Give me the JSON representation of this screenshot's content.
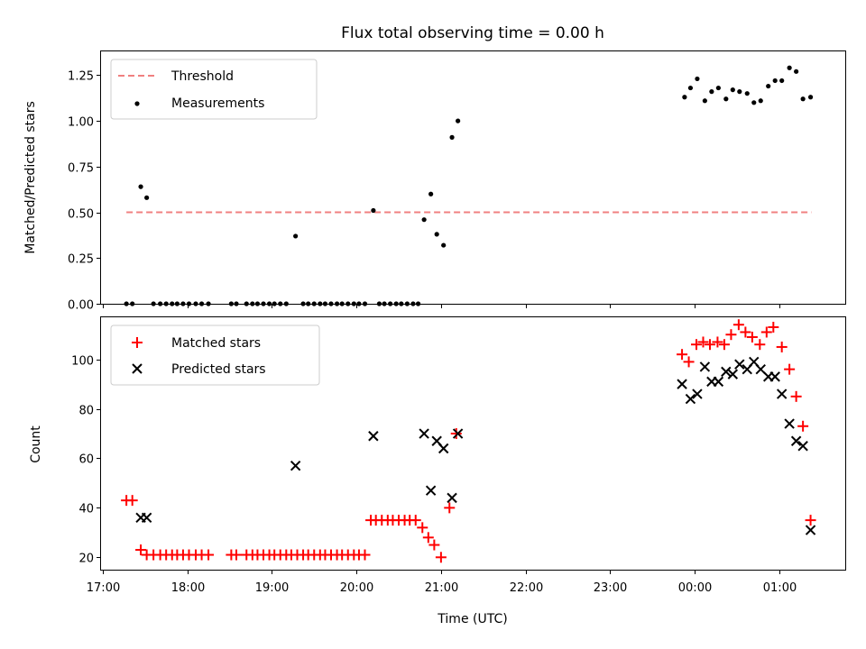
{
  "chart_data": {
    "type": "scatter",
    "title": "Flux total observing time = 0.00 h",
    "xlabel": "Time (UTC)",
    "x_tick_labels": [
      "17:00",
      "18:00",
      "19:00",
      "20:00",
      "21:00",
      "22:00",
      "23:00",
      "00:00",
      "01:00"
    ],
    "x_range_hours": [
      16.98,
      25.78
    ],
    "top_panel": {
      "ylabel": "Matched/Predicted stars",
      "ylim": [
        0,
        1.38
      ],
      "y_ticks": [
        "0.00",
        "0.25",
        "0.50",
        "0.75",
        "1.00",
        "1.25"
      ],
      "y_tick_values": [
        0,
        0.25,
        0.5,
        0.75,
        1.0,
        1.25
      ],
      "legend": {
        "position": "top-left",
        "threshold_label": "Threshold",
        "measurements_label": "Measurements"
      },
      "threshold": {
        "value": 0.5,
        "x_start": 17.28,
        "x_end": 25.38,
        "color": "#f08080"
      },
      "measurements": {
        "color": "#000000",
        "x": [
          17.28,
          17.35,
          17.45,
          17.52,
          17.6,
          17.68,
          17.75,
          17.82,
          17.88,
          17.95,
          18.02,
          18.1,
          18.17,
          18.25,
          18.52,
          18.58,
          18.7,
          18.77,
          18.83,
          18.9,
          18.97,
          19.03,
          19.1,
          19.17,
          19.28,
          19.37,
          19.43,
          19.5,
          19.57,
          19.63,
          19.7,
          19.77,
          19.83,
          19.9,
          19.97,
          20.03,
          20.1,
          20.2,
          20.27,
          20.33,
          20.4,
          20.47,
          20.53,
          20.6,
          20.67,
          20.73,
          20.8,
          20.88,
          20.95,
          21.03,
          21.13,
          21.2,
          23.88,
          23.95,
          24.03,
          24.12,
          24.2,
          24.28,
          24.37,
          24.45,
          24.53,
          24.62,
          24.7,
          24.78,
          24.87,
          24.95,
          25.03,
          25.12,
          25.2,
          25.28,
          25.37
        ],
        "y": [
          0.0,
          0.0,
          0.64,
          0.58,
          0.0,
          0.0,
          0.0,
          0.0,
          0.0,
          0.0,
          0.0,
          0.0,
          0.0,
          0.0,
          0.0,
          0.0,
          0.0,
          0.0,
          0.0,
          0.0,
          0.0,
          0.0,
          0.0,
          0.0,
          0.37,
          0.0,
          0.0,
          0.0,
          0.0,
          0.0,
          0.0,
          0.0,
          0.0,
          0.0,
          0.0,
          0.0,
          0.0,
          0.51,
          0.0,
          0.0,
          0.0,
          0.0,
          0.0,
          0.0,
          0.0,
          0.0,
          0.46,
          0.6,
          0.38,
          0.32,
          0.91,
          1.0,
          1.13,
          1.18,
          1.23,
          1.11,
          1.16,
          1.18,
          1.12,
          1.17,
          1.16,
          1.15,
          1.1,
          1.11,
          1.19,
          1.22,
          1.22,
          1.29,
          1.27,
          1.12,
          1.13
        ]
      }
    },
    "bottom_panel": {
      "ylabel": "Count",
      "ylim": [
        15,
        117
      ],
      "y_ticks": [
        "20",
        "40",
        "60",
        "80",
        "100"
      ],
      "y_tick_values": [
        20,
        40,
        60,
        80,
        100
      ],
      "legend": {
        "position": "top-left"
      },
      "series": [
        {
          "name": "Matched stars",
          "marker": "plus",
          "color": "#ff0000",
          "x": [
            17.28,
            17.35,
            17.45,
            17.52,
            17.6,
            17.68,
            17.75,
            17.82,
            17.88,
            17.95,
            18.02,
            18.1,
            18.17,
            18.25,
            18.52,
            18.58,
            18.7,
            18.77,
            18.83,
            18.9,
            18.97,
            19.03,
            19.1,
            19.17,
            19.23,
            19.3,
            19.37,
            19.43,
            19.5,
            19.57,
            19.63,
            19.7,
            19.77,
            19.83,
            19.9,
            19.97,
            20.03,
            20.1,
            20.17,
            20.23,
            20.3,
            20.37,
            20.43,
            20.5,
            20.57,
            20.63,
            20.7,
            20.78,
            20.85,
            20.92,
            21.0,
            21.1,
            21.18,
            23.85,
            23.93,
            24.02,
            24.1,
            24.18,
            24.27,
            24.35,
            24.43,
            24.52,
            24.6,
            24.68,
            24.77,
            24.85,
            24.93,
            25.03,
            25.12,
            25.2,
            25.28,
            25.37
          ],
          "y": [
            43,
            43,
            23,
            21,
            21,
            21,
            21,
            21,
            21,
            21,
            21,
            21,
            21,
            21,
            21,
            21,
            21,
            21,
            21,
            21,
            21,
            21,
            21,
            21,
            21,
            21,
            21,
            21,
            21,
            21,
            21,
            21,
            21,
            21,
            21,
            21,
            21,
            21,
            35,
            35,
            35,
            35,
            35,
            35,
            35,
            35,
            35,
            32,
            28,
            25,
            20,
            40,
            70,
            102,
            99,
            106,
            107,
            106,
            107,
            106,
            110,
            114,
            111,
            109,
            106,
            111,
            113,
            105,
            96,
            85,
            73,
            35
          ]
        },
        {
          "name": "Predicted stars",
          "marker": "x",
          "color": "#000000",
          "x": [
            17.45,
            17.52,
            19.28,
            20.2,
            20.8,
            20.88,
            20.95,
            21.03,
            21.13,
            21.2,
            23.85,
            23.95,
            24.03,
            24.12,
            24.2,
            24.28,
            24.37,
            24.45,
            24.53,
            24.62,
            24.7,
            24.78,
            24.87,
            24.95,
            25.03,
            25.12,
            25.2,
            25.28,
            25.37
          ],
          "y": [
            36,
            36,
            57,
            69,
            70,
            47,
            67,
            64,
            44,
            70,
            90,
            84,
            86,
            97,
            91,
            91,
            95,
            94,
            98,
            96,
            99,
            96,
            93,
            93,
            86,
            74,
            67,
            65,
            31
          ]
        }
      ]
    }
  }
}
